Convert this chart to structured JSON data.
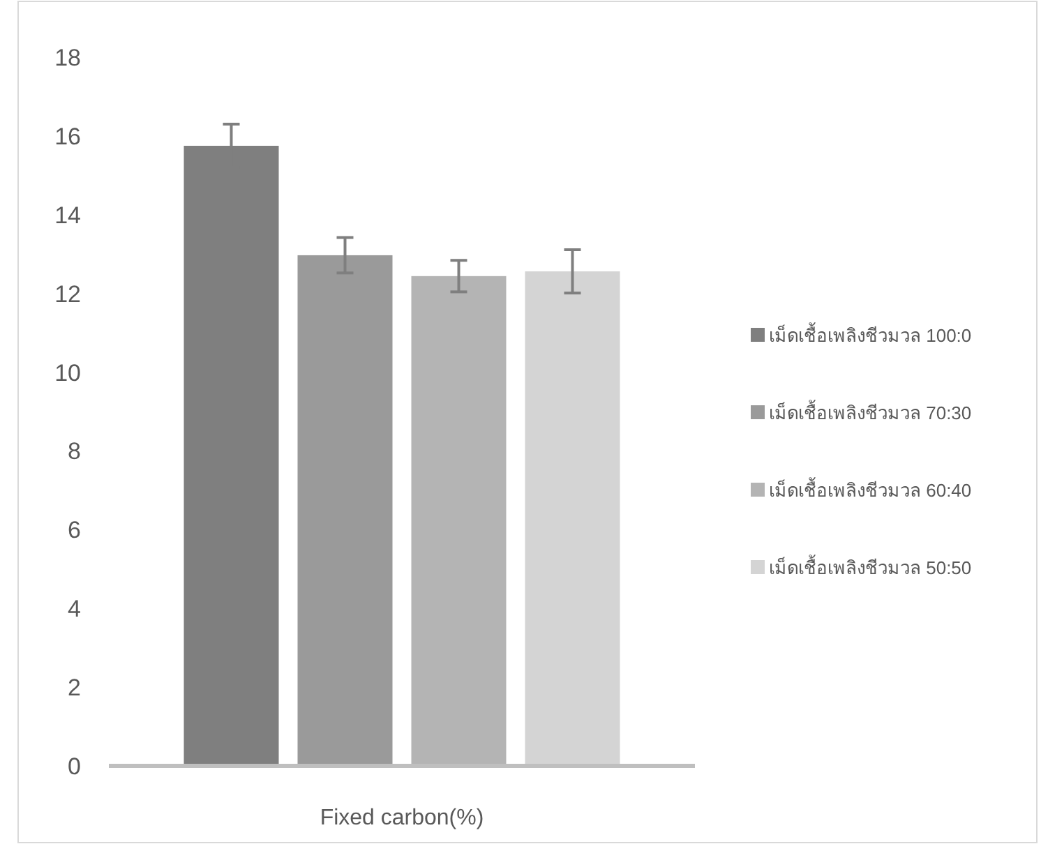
{
  "chart_data": {
    "type": "bar",
    "categories": [
      "Fixed carbon(%)"
    ],
    "series": [
      {
        "name": "เม็ดเชื้อเพลิงชีวมวล 100:0",
        "color": "#7f7f7f",
        "values": [
          15.75
        ],
        "errors": [
          0.55
        ]
      },
      {
        "name": "เม็ดเชื้อเพลิงชีวมวล 70:30",
        "color": "#9a9a9a",
        "values": [
          12.97
        ],
        "errors": [
          0.45
        ]
      },
      {
        "name": "เม็ดเชื้อเพลิงชีวมวล 60:40",
        "color": "#b4b4b4",
        "values": [
          12.44
        ],
        "errors": [
          0.4
        ]
      },
      {
        "name": "เม็ดเชื้อเพลิงชีวมวล 50:50",
        "color": "#d4d4d4",
        "values": [
          12.56
        ],
        "errors": [
          0.55
        ]
      }
    ],
    "ylim": [
      0,
      18
    ],
    "yticks": [
      0,
      2,
      4,
      6,
      8,
      10,
      12,
      14,
      16,
      18
    ],
    "legend": "right"
  }
}
